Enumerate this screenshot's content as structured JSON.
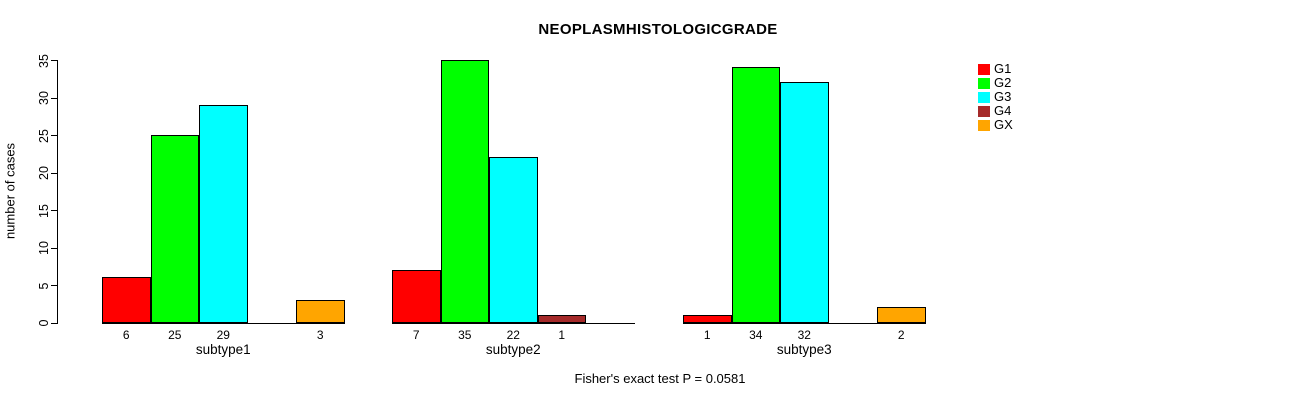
{
  "page": {
    "background": "#ffffff"
  },
  "chart_data": {
    "type": "bar",
    "bar_mode": "grouped",
    "title": "NEOPLASMHISTOLOGICGRADE",
    "xlabel": "",
    "ylabel": "number of cases",
    "annotation": "Fisher's exact test P = 0.0581",
    "ylim": [
      0,
      35
    ],
    "yticks": [
      0,
      5,
      10,
      15,
      20,
      25,
      30,
      35
    ],
    "grid": false,
    "legend_position": "right",
    "show_value_labels": true,
    "zero_value_bars_omitted": true,
    "categories": [
      "subtype1",
      "subtype2",
      "subtype3"
    ],
    "series": [
      {
        "name": "G1",
        "color": "#FF0000",
        "values": [
          6,
          7,
          1
        ]
      },
      {
        "name": "G2",
        "color": "#00FF00",
        "values": [
          25,
          35,
          34
        ]
      },
      {
        "name": "G3",
        "color": "#00FFFF",
        "values": [
          29,
          22,
          32
        ]
      },
      {
        "name": "G4",
        "color": "#A52A2A",
        "values": [
          0,
          1,
          0
        ]
      },
      {
        "name": "GX",
        "color": "#FFA500",
        "values": [
          3,
          0,
          2
        ]
      }
    ]
  }
}
